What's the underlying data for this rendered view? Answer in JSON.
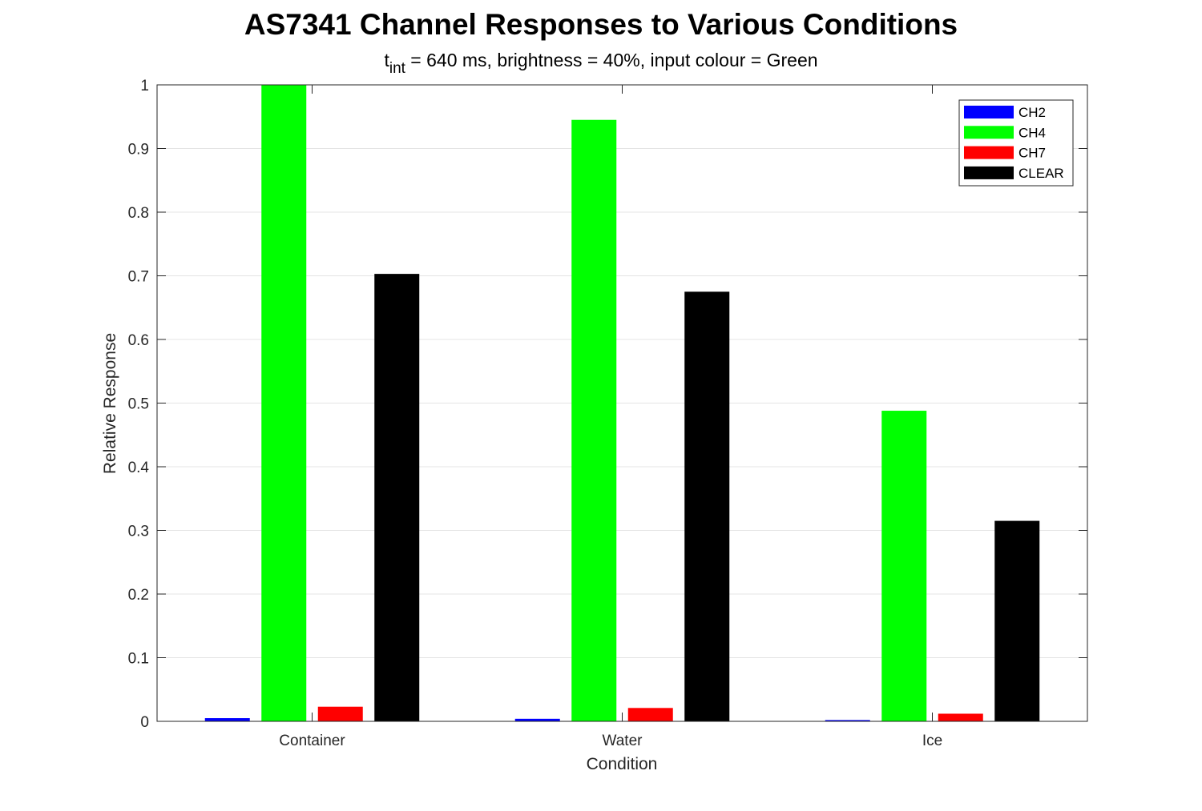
{
  "chart_data": {
    "type": "bar",
    "title": "AS7341 Channel Responses to Various Conditions",
    "subtitle": {
      "prefix": "t",
      "subscript": "int",
      "rest": " = 640 ms, brightness = 40%, input colour = Green"
    },
    "xlabel": "Condition",
    "ylabel": "Relative Response",
    "categories": [
      "Container",
      "Water",
      "Ice"
    ],
    "ylim": [
      0,
      1
    ],
    "yticks": [
      0,
      0.1,
      0.2,
      0.3,
      0.4,
      0.5,
      0.6,
      0.7,
      0.8,
      0.9,
      1
    ],
    "ytick_labels": [
      "0",
      "0.1",
      "0.2",
      "0.3",
      "0.4",
      "0.5",
      "0.6",
      "0.7",
      "0.8",
      "0.9",
      "1"
    ],
    "grid": "y-major",
    "legend_position": "top-right",
    "series": [
      {
        "name": "CH2",
        "color": "#0000ff",
        "values": [
          0.005,
          0.004,
          0.002
        ]
      },
      {
        "name": "CH4",
        "color": "#00ff00",
        "values": [
          1.0,
          0.945,
          0.488
        ]
      },
      {
        "name": "CH7",
        "color": "#ff0000",
        "values": [
          0.023,
          0.021,
          0.012
        ]
      },
      {
        "name": "CLEAR",
        "color": "#000000",
        "values": [
          0.703,
          0.675,
          0.315
        ]
      }
    ]
  }
}
